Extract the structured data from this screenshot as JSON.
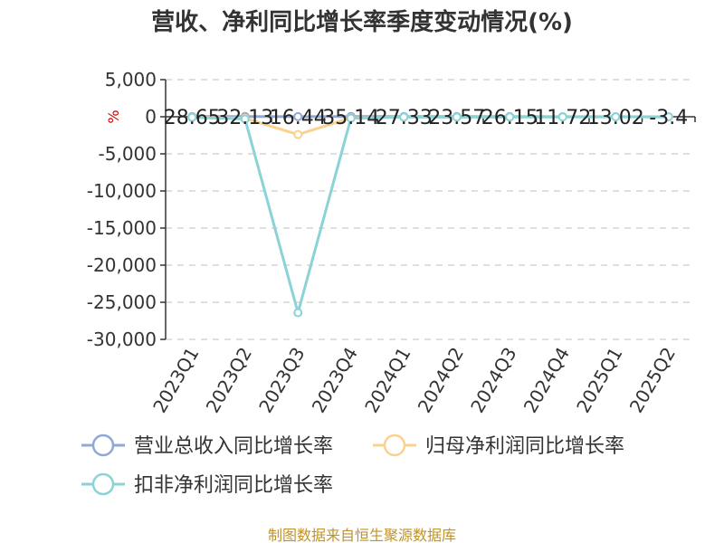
{
  "chart_data": {
    "type": "line",
    "title": "营收、净利同比增长率季度变动情况(%)",
    "unit_label": "%",
    "categories": [
      "2023Q1",
      "2023Q2",
      "2023Q3",
      "2023Q4",
      "2024Q1",
      "2024Q2",
      "2024Q3",
      "2024Q4",
      "2025Q1",
      "2025Q2"
    ],
    "ylim": [
      -30000,
      5000
    ],
    "yticks": [
      5000,
      0,
      -5000,
      -10000,
      -15000,
      -20000,
      -25000,
      -30000
    ],
    "ytick_labels": [
      "5,000",
      "0",
      "-5,000",
      "-10,000",
      "-15,000",
      "-20,000",
      "-25,000",
      "-30,000"
    ],
    "grid": true,
    "legend_position": "bottom",
    "series": [
      {
        "name": "营业总收入同比增长率",
        "color": "#8fa9d6",
        "values": [
          28.65,
          32.13,
          16.44,
          35.14,
          27.33,
          23.57,
          26.15,
          11.72,
          13.02,
          -3.4
        ]
      },
      {
        "name": "归母净利润同比增长率",
        "color": "#f9d28e",
        "values": [
          -50,
          -200,
          -2400,
          -150,
          -60,
          -40,
          -30,
          -20,
          -10,
          -5
        ]
      },
      {
        "name": "扣非净利润同比增长率",
        "color": "#8ad3d7",
        "values": [
          -80,
          -300,
          -26400,
          -200,
          -50,
          -45,
          -35,
          -25,
          -15,
          -8
        ]
      }
    ],
    "data_labels": [
      "28.65",
      "32.13",
      "16.44",
      "35.14",
      "27.33",
      "23.57",
      "26.15",
      "11.72",
      "13.02",
      "-3.4"
    ],
    "source": "制图数据来自恒生聚源数据库"
  }
}
